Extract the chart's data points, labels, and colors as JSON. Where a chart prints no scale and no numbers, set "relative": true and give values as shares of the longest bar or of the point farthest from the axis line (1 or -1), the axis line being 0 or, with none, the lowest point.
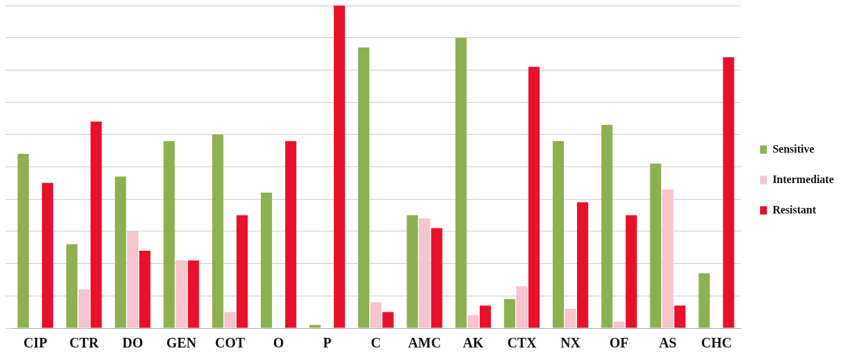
{
  "chart_data": {
    "type": "bar",
    "relative": true,
    "grid": "y",
    "legend": "right",
    "categories": [
      "CIP",
      "CTR",
      "DO",
      "GEN",
      "COT",
      "O",
      "P",
      "C",
      "AMC",
      "AK",
      "CTX",
      "NX",
      "OF",
      "AS",
      "CHC"
    ],
    "series": [
      {
        "name": "Sensitive",
        "color": "#8db050",
        "values": [
          0.54,
          0.26,
          0.47,
          0.58,
          0.6,
          0.42,
          0.01,
          0.87,
          0.35,
          0.9,
          0.09,
          0.58,
          0.63,
          0.51,
          0.17
        ]
      },
      {
        "name": "Intermediate",
        "color": "#f6c4cc",
        "values": [
          null,
          0.12,
          0.3,
          0.21,
          0.05,
          null,
          null,
          0.08,
          0.34,
          0.04,
          0.13,
          0.06,
          0.02,
          0.43,
          null
        ]
      },
      {
        "name": "Resistant",
        "color": "#e8102a",
        "values": [
          0.45,
          0.64,
          0.24,
          0.21,
          0.35,
          0.58,
          1,
          0.05,
          0.31,
          0.07,
          0.81,
          0.39,
          0.35,
          0.07,
          0.84
        ]
      }
    ]
  }
}
